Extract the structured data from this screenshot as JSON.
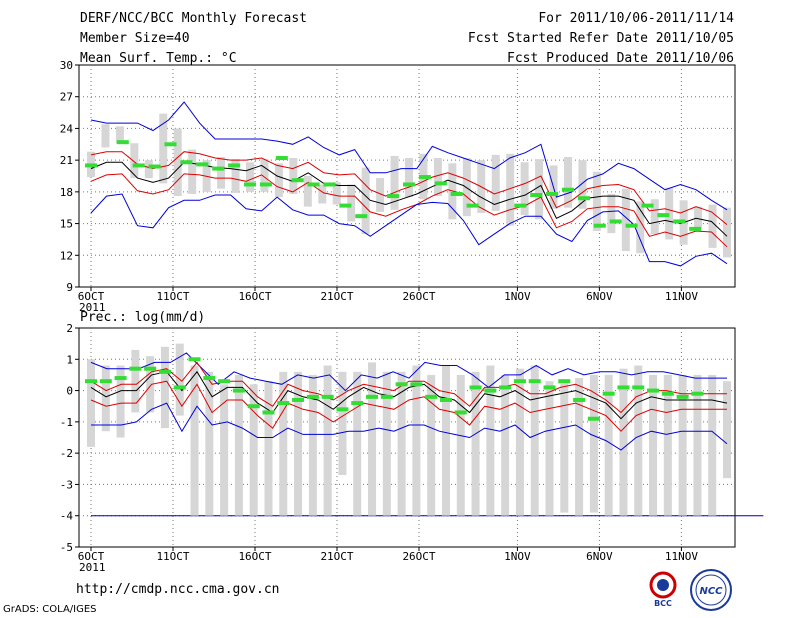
{
  "header": {
    "title": "DERF/NCC/BCC Monthly Forecast",
    "member_size": "Member Size=40",
    "period": "For 2011/10/06-2011/11/14",
    "started": "Fcst Started Refer Date 2011/10/05",
    "produced": "Fcst Produced Date 2011/10/06"
  },
  "footer": {
    "url": "http://cmdp.ncc.cma.gov.cn",
    "credit": "GrADS: COLA/IGES",
    "logo_left": "BCC",
    "logo_right": "NCC"
  },
  "colors": {
    "box": "#d6d6d6",
    "obs": "#33dd33",
    "mean": "#000000",
    "std": "#dd0000",
    "envelope": "#0000dd",
    "grid": "#777777"
  },
  "chart_data": [
    {
      "type": "line",
      "title": "Mean Surf. Temp.: °C",
      "ylim": [
        9,
        30
      ],
      "yticks": [
        "9",
        "12",
        "15",
        "18",
        "21",
        "24",
        "27",
        "30"
      ],
      "ytick_values": [
        9,
        12,
        15,
        18,
        21,
        24,
        27,
        30
      ],
      "xlabels": [
        {
          "day": 0,
          "label": "6OCT",
          "sub": "2011"
        },
        {
          "day": 5,
          "label": "11OCT"
        },
        {
          "day": 10,
          "label": "16OCT"
        },
        {
          "day": 15,
          "label": "21OCT"
        },
        {
          "day": 20,
          "label": "26OCT"
        },
        {
          "day": 26,
          "label": "1NOV"
        },
        {
          "day": 31,
          "label": "6NOV"
        },
        {
          "day": 36,
          "label": "11NOV"
        }
      ],
      "days": 40,
      "series": [
        {
          "name": "max",
          "values": [
            24.8,
            24.5,
            24.5,
            24.5,
            23.8,
            24.8,
            26.5,
            24.5,
            23,
            23,
            23,
            23,
            22.8,
            22.5,
            23.2,
            22.2,
            21.5,
            22,
            19.8,
            19.8,
            20.2,
            20.2,
            22.3,
            21.7,
            21.2,
            20.7,
            20.2,
            21.2,
            21.7,
            22.5,
            17.5,
            18,
            19.2,
            19.7,
            20.7,
            20.2,
            19.2,
            18.2,
            18.7,
            18.2,
            17.2,
            16.3
          ]
        },
        {
          "name": "mean_plus_std",
          "values": [
            21.5,
            21.8,
            21.8,
            20.6,
            20.2,
            20.5,
            21.8,
            21.6,
            21.2,
            21,
            21,
            21.2,
            20.5,
            20.2,
            20.8,
            19.8,
            19.6,
            19.7,
            18.2,
            17.6,
            18.2,
            18.7,
            19.4,
            19.8,
            19.3,
            18.6,
            17.8,
            18.3,
            18.8,
            19.5,
            16.5,
            17.2,
            18.3,
            18.6,
            18.7,
            18.2,
            16.2,
            16.4,
            16,
            16.6,
            16.1,
            14.9
          ]
        },
        {
          "name": "mean",
          "values": [
            20.2,
            20.8,
            20.8,
            19.3,
            18.9,
            19.3,
            20.8,
            20.6,
            20.3,
            20.2,
            20,
            20.5,
            19.5,
            19,
            19.8,
            18.8,
            18.6,
            18.6,
            17.2,
            16.8,
            17.3,
            17.8,
            18.5,
            19.1,
            18.6,
            17.6,
            16.8,
            17.3,
            17.7,
            18.6,
            15.5,
            16.2,
            17.4,
            17.6,
            17.6,
            17.2,
            15,
            15.3,
            15,
            15.5,
            15.2,
            13.8
          ]
        },
        {
          "name": "mean_minus_std",
          "values": [
            19,
            19.6,
            19.7,
            18.1,
            17.8,
            18.2,
            19.7,
            19.6,
            19.3,
            19.3,
            19,
            19.6,
            18.5,
            18,
            18.9,
            17.9,
            17.6,
            17.6,
            16.1,
            15.7,
            16.3,
            16.8,
            17.6,
            18.2,
            17.8,
            16.6,
            15.8,
            16.3,
            16.7,
            17.5,
            14.6,
            15.2,
            16.4,
            16.6,
            16.6,
            16.2,
            13.8,
            14.2,
            13.8,
            14.3,
            14.2,
            12.8
          ]
        },
        {
          "name": "min",
          "values": [
            16,
            17.6,
            17.8,
            14.8,
            14.6,
            16.5,
            17.2,
            17.2,
            17.7,
            17.7,
            16.4,
            16.2,
            17.5,
            16.3,
            15.8,
            15.8,
            15,
            14.8,
            13.8,
            14.8,
            15.8,
            16.8,
            17,
            16.9,
            15.3,
            13,
            14,
            15,
            15.7,
            15.7,
            14,
            13.3,
            15.3,
            16.1,
            16.2,
            14.9,
            11.4,
            11.4,
            11,
            11.9,
            12.2,
            11.2
          ]
        }
      ],
      "observed": [
        20.5,
        null,
        22.7,
        20.5,
        20.4,
        22.5,
        20.8,
        20.6,
        20.2,
        20.5,
        18.7,
        18.7,
        21.2,
        19.1,
        18.7,
        18.7,
        16.7,
        15.7,
        null,
        17.6,
        18.7,
        19.4,
        18.8,
        17.8,
        16.7,
        null,
        null,
        16.7,
        17.7,
        17.8,
        18.2,
        17.4,
        14.8,
        15.2,
        14.8,
        16.7,
        15.8,
        15.2,
        14.5
      ],
      "boxes": [
        [
          19.4,
          21.8
        ],
        [
          22.2,
          24.4
        ],
        [
          22.6,
          24.2
        ],
        [
          19.3,
          22.6
        ],
        [
          19.3,
          21
        ],
        [
          18.8,
          25.4
        ],
        [
          17.6,
          24
        ],
        [
          17.8,
          22
        ],
        [
          18,
          21
        ],
        [
          18.3,
          21.3
        ],
        [
          17.9,
          21.1
        ],
        [
          18,
          20.8
        ],
        [
          18,
          21.1
        ],
        [
          17.5,
          20.7
        ],
        [
          17.8,
          21.2
        ],
        [
          16.6,
          19.5
        ],
        [
          16.9,
          18.7
        ],
        [
          16.8,
          18.9
        ],
        [
          15.2,
          18.7
        ],
        [
          14,
          20.3
        ],
        [
          16.1,
          19.3
        ],
        [
          16.3,
          21.4
        ],
        [
          17.5,
          21.2
        ],
        [
          17.3,
          21.6
        ],
        [
          17.6,
          21.2
        ],
        [
          15.4,
          20.7
        ],
        [
          15.7,
          21.2
        ],
        [
          16,
          21
        ],
        [
          16.2,
          21.5
        ],
        [
          14.8,
          21.6
        ],
        [
          15.8,
          20.8
        ],
        [
          15.4,
          21.1
        ],
        [
          16.4,
          20.5
        ],
        [
          16.5,
          21.3
        ],
        [
          16.4,
          21
        ],
        [
          14.3,
          19.9
        ],
        [
          14.1,
          17.8
        ],
        [
          12.4,
          18.3
        ],
        [
          12.2,
          17.1
        ],
        [
          14,
          17.3
        ],
        [
          13.5,
          18.4
        ],
        [
          13,
          17.2
        ],
        [
          14.6,
          16.6
        ],
        [
          12.7,
          16.8
        ],
        [
          11.8,
          16.5
        ]
      ]
    },
    {
      "type": "line",
      "title": "Prec.: log(mm/d)",
      "ylim": [
        -5,
        2
      ],
      "yticks": [
        "-5",
        "-4",
        "-3",
        "-2",
        "-1",
        "0",
        "1",
        "2"
      ],
      "ytick_values": [
        -5,
        -4,
        -3,
        -2,
        -1,
        0,
        1,
        2
      ],
      "xlabels": [
        {
          "day": 0,
          "label": "6OCT",
          "sub": "2011"
        },
        {
          "day": 5,
          "label": "11OCT"
        },
        {
          "day": 10,
          "label": "16OCT"
        },
        {
          "day": 15,
          "label": "21OCT"
        },
        {
          "day": 20,
          "label": "26OCT"
        },
        {
          "day": 26,
          "label": "1NOV"
        },
        {
          "day": 31,
          "label": "6NOV"
        },
        {
          "day": 36,
          "label": "11NOV"
        }
      ],
      "days": 40,
      "floor": -4,
      "series": [
        {
          "name": "max",
          "values": [
            0.9,
            0.7,
            0.7,
            0.7,
            0.9,
            0.9,
            1.2,
            0.7,
            0.2,
            0.6,
            0.4,
            0.3,
            0.2,
            0.5,
            0.4,
            0.5,
            0,
            0.5,
            0.4,
            0.6,
            0.4,
            0.9,
            0.8,
            0.8,
            0.5,
            0.1,
            0.5,
            0.5,
            0.8,
            0.5,
            0.7,
            0.5,
            0.6,
            0.6,
            0.5,
            0.6,
            0.6,
            0.5,
            0.4,
            0.4,
            0.4
          ]
        },
        {
          "name": "mean_plus_std",
          "values": [
            0.3,
            0,
            0.2,
            0.2,
            0.6,
            0.7,
            0.3,
            0.9,
            0.2,
            0.3,
            0.3,
            -0.2,
            -0.5,
            0.2,
            0,
            -0.1,
            -0.3,
            0,
            0.2,
            0.1,
            0,
            0.3,
            0.3,
            0,
            -0.1,
            -0.5,
            0.1,
            0.1,
            0.2,
            -0.1,
            -0.1,
            0.1,
            0.2,
            0,
            -0.3,
            -0.7,
            -0.2,
            0,
            0,
            -0.1,
            -0.1,
            -0.1,
            -0.1
          ]
        },
        {
          "name": "mean",
          "values": [
            0.1,
            -0.2,
            0,
            0,
            0.5,
            0.6,
            0,
            0.6,
            -0.2,
            0.1,
            0.1,
            -0.4,
            -0.7,
            0,
            -0.2,
            -0.3,
            -0.6,
            -0.2,
            0.1,
            -0.1,
            -0.2,
            0.1,
            0.2,
            -0.2,
            -0.3,
            -0.7,
            -0.1,
            -0.2,
            0,
            -0.3,
            -0.2,
            -0.1,
            0,
            -0.2,
            -0.4,
            -0.9,
            -0.4,
            -0.2,
            -0.3,
            -0.3,
            -0.3,
            -0.3,
            -0.4
          ]
        },
        {
          "name": "mean_minus_std",
          "values": [
            -0.3,
            -0.5,
            -0.4,
            -0.4,
            0.2,
            0.3,
            -0.5,
            0.2,
            -0.7,
            -0.3,
            -0.3,
            -0.8,
            -1.2,
            -0.4,
            -0.6,
            -0.7,
            -1,
            -0.7,
            -0.4,
            -0.5,
            -0.6,
            -0.3,
            -0.2,
            -0.6,
            -0.7,
            -1.1,
            -0.5,
            -0.6,
            -0.4,
            -0.7,
            -0.6,
            -0.5,
            -0.4,
            -0.6,
            -0.8,
            -1.3,
            -0.8,
            -0.6,
            -0.7,
            -0.6,
            -0.6,
            -0.6,
            -0.6
          ]
        },
        {
          "name": "min",
          "values": [
            -1.1,
            -1.1,
            -1.1,
            -1,
            -0.6,
            -0.4,
            -1.3,
            -0.5,
            -1.1,
            -1,
            -1.2,
            -1.5,
            -1.5,
            -1.2,
            -1.4,
            -1.4,
            -1.4,
            -1.3,
            -1.3,
            -1.2,
            -1.3,
            -1.1,
            -1.1,
            -1.3,
            -1.4,
            -1.5,
            -1.2,
            -1.3,
            -1.1,
            -1.5,
            -1.3,
            -1.2,
            -1.1,
            -1.4,
            -1.6,
            -1.9,
            -1.5,
            -1.3,
            -1.4,
            -1.3,
            -1.3,
            -1.3,
            -1.7
          ]
        }
      ],
      "observed": [
        0.3,
        0.3,
        0.4,
        0.7,
        0.7,
        0.6,
        0.1,
        1,
        0.4,
        0.3,
        0,
        -0.5,
        -0.7,
        -0.4,
        -0.3,
        -0.2,
        -0.2,
        -0.6,
        -0.4,
        -0.2,
        -0.2,
        0.2,
        0.2,
        -0.2,
        -0.3,
        -0.7,
        0.1,
        0,
        0.1,
        0.3,
        0.3,
        0.1,
        0.3,
        -0.3,
        -0.9,
        -0.1,
        0.1,
        0.1,
        0,
        -0.1,
        -0.2,
        -0.1
      ],
      "boxes": [
        [
          -1.8,
          1
        ],
        [
          -1.3,
          0.8
        ],
        [
          -1.5,
          0.8
        ],
        [
          -0.7,
          1.3
        ],
        [
          -0.7,
          1.1
        ],
        [
          -1.2,
          1.4
        ],
        [
          -0.8,
          1.5
        ],
        [
          -4,
          0.8
        ],
        [
          -4,
          0.6
        ],
        [
          -4,
          0.2
        ],
        [
          -4,
          0.5
        ],
        [
          -4,
          0.2
        ],
        [
          -4,
          0.3
        ],
        [
          -4,
          0.6
        ],
        [
          -4,
          0.6
        ],
        [
          -4,
          0.5
        ],
        [
          -4,
          0.8
        ],
        [
          -2.7,
          0.6
        ],
        [
          -4,
          0.6
        ],
        [
          -4,
          0.9
        ],
        [
          -4,
          0.6
        ],
        [
          -4,
          0.6
        ],
        [
          -4,
          0.8
        ],
        [
          -4,
          0.5
        ],
        [
          -4,
          0.8
        ],
        [
          -4,
          0.5
        ],
        [
          -4,
          0.6
        ],
        [
          -4,
          0.8
        ],
        [
          -4,
          0.5
        ],
        [
          -4,
          0.7
        ],
        [
          -4,
          0.8
        ],
        [
          -4,
          0.3
        ],
        [
          -3.9,
          0.3
        ],
        [
          -4,
          0.4
        ],
        [
          -3.9,
          0.5
        ],
        [
          -4,
          0.5
        ],
        [
          -4,
          0.7
        ],
        [
          -4,
          0.8
        ],
        [
          -4,
          0.5
        ],
        [
          -4,
          0.5
        ],
        [
          -4,
          0.5
        ],
        [
          -4,
          0.5
        ],
        [
          -4,
          0.5
        ],
        [
          -2.8,
          0.3
        ]
      ]
    }
  ]
}
